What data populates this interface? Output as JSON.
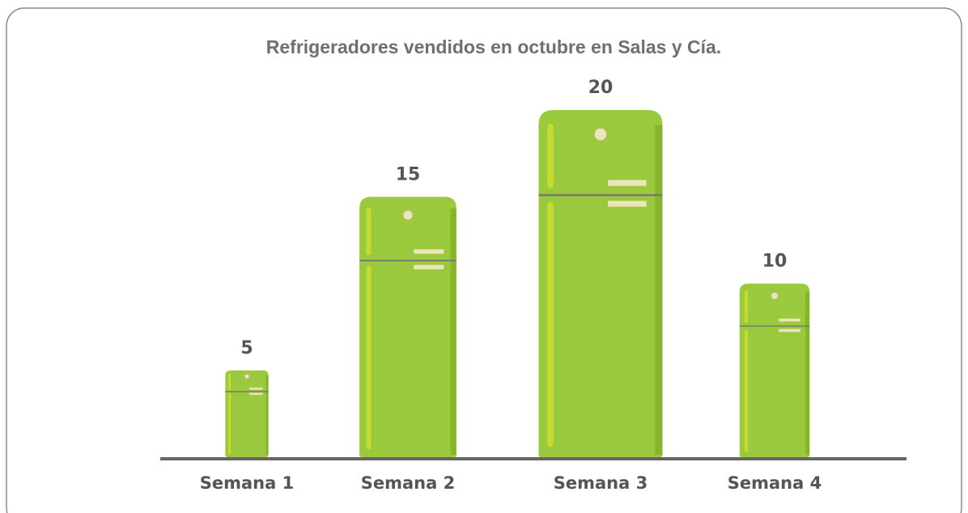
{
  "chart_data": {
    "type": "pictograph",
    "title": "Refrigeradores vendidos en octubre en Salas y Cía.",
    "categories": [
      "Semana 1",
      "Semana 2",
      "Semana 3",
      "Semana 4"
    ],
    "values": [
      5,
      15,
      20,
      10
    ],
    "color": "#9bc93d"
  }
}
